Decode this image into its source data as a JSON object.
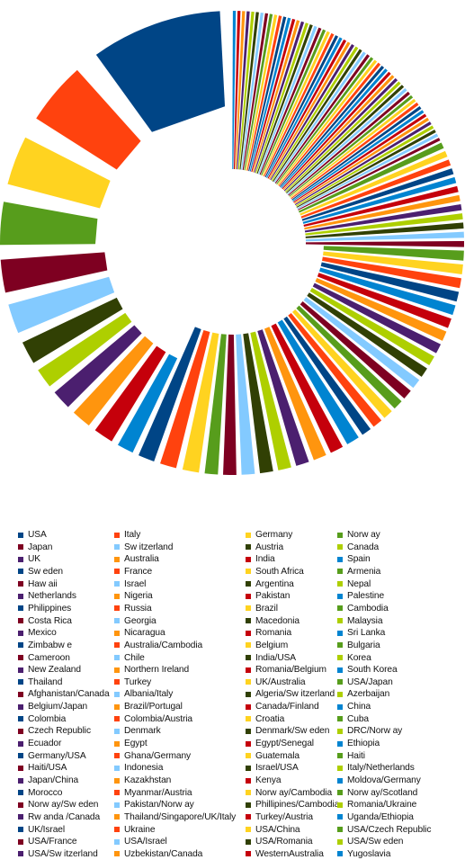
{
  "chart_data": {
    "type": "pie",
    "title": "",
    "legend_position": "bottom",
    "legend_columns": 4,
    "categories": [
      "USA",
      "Italy",
      "Germany",
      "Norw ay",
      "Japan",
      "Sw itzerland",
      "Austria",
      "Canada",
      "UK",
      "Australia",
      "India",
      "Spain",
      "Sw eden",
      "France",
      "South Africa",
      "Armenia",
      "Haw aii",
      "Israel",
      "Argentina",
      "Nepal",
      "Netherlands",
      "Nigeria",
      "Pakistan",
      "Palestine",
      "Philippines",
      "Russia",
      "Brazil",
      "Cambodia",
      "Costa Rica",
      "Georgia",
      "Macedonia",
      "Malaysia",
      "Mexico",
      "Nicaragua",
      "Romania",
      "Sri Lanka",
      "Zimbabw e",
      "Australia/Cambodia",
      "Belgium",
      "Bulgaria",
      "Cameroon",
      "Chile",
      "India/USA",
      "Korea",
      "New Zealand",
      "Northern Ireland",
      "Romania/Belgium",
      "South Korea",
      "Thailand",
      "Turkey",
      "UK/Australia",
      "USA/Japan",
      "Afghanistan/Canada",
      "Albania/Italy",
      "Algeria/Sw itzerland",
      "Azerbaijan",
      "Belgium/Japan",
      "Brazil/Portugal",
      "Canada/Finland",
      "China",
      "Colombia",
      "Colombia/Austria",
      "Croatia",
      "Cuba",
      "Czech Republic",
      "Denmark",
      "Denmark/Sw eden",
      "DRC/Norw ay",
      "Ecuador",
      "Egypt",
      "Egypt/Senegal",
      "Ethiopia",
      "Germany/USA",
      "Ghana/Germany",
      "Guatemala",
      "Haiti",
      "Haiti/USA",
      "Indonesia",
      "Israel/USA",
      "Italy/Netherlands",
      "Japan/China",
      "Kazakhstan",
      "Kenya",
      "Moldova/Germany",
      "Morocco",
      "Myanmar/Austria",
      "Norw ay/Cambodia",
      "Norw ay/Scotland",
      "Norw ay/Sw eden",
      "Pakistan/Norw ay",
      "Phillipines/Cambodia",
      "Romania/Ukraine",
      "Rw anda /Canada",
      "Thailand/Singapore/UK/Italy",
      "Turkey/Austria",
      "Uganda/Ethiopia",
      "UK/Israel",
      "Ukraine",
      "USA/China",
      "USA/Czech Republic",
      "USA/France",
      "USA/Israel",
      "USA/Romania",
      "USA/Sw eden",
      "USA/Sw itzerland",
      "Uzbekistan/Canada",
      "WesternAustralia",
      "Yugoslavia"
    ],
    "values": [
      34,
      19,
      15,
      13,
      10,
      9,
      7,
      6,
      6,
      6,
      6,
      5,
      5,
      5,
      5,
      4,
      4,
      4,
      4,
      4,
      4,
      4,
      4,
      4,
      3,
      3,
      3,
      3,
      3,
      3,
      3,
      3,
      3,
      3,
      3,
      3,
      3,
      3,
      3,
      3,
      2,
      2,
      2,
      2,
      2,
      2,
      2,
      2,
      2,
      2,
      2,
      2,
      1,
      1,
      1,
      1,
      1,
      1,
      1,
      1,
      1,
      1,
      1,
      1,
      1,
      1,
      1,
      1,
      1,
      1,
      1,
      1,
      1,
      1,
      1,
      1,
      1,
      1,
      1,
      1,
      1,
      1,
      1,
      1,
      1,
      1,
      1,
      1,
      1,
      1,
      1,
      1,
      1,
      1,
      1,
      1,
      1,
      1,
      1,
      1,
      1,
      1,
      1,
      1,
      1,
      1,
      1,
      1
    ],
    "exploded": true,
    "palette": [
      "#004586",
      "#ff420e",
      "#ffd320",
      "#579d1c",
      "#7e0021",
      "#83caff",
      "#314004",
      "#aecf00",
      "#4b1f6f",
      "#ff950e",
      "#c5000b",
      "#0084d1"
    ]
  }
}
